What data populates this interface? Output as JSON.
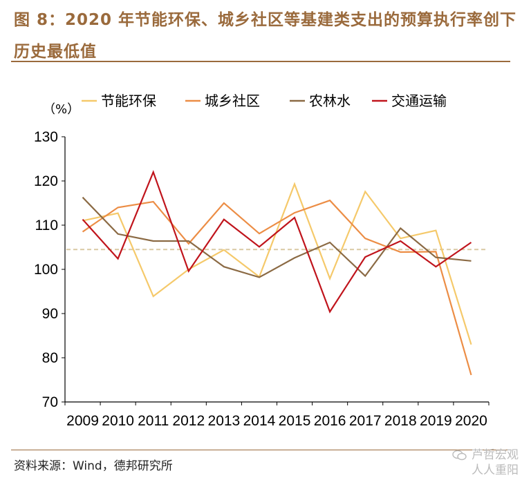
{
  "page": {
    "title": "图 8：2020 年节能环保、城乡社区等基建类支出的预算执行率创下历史最低值",
    "source": "资料来源：Wind，德邦研究所",
    "watermark_line1": "芦哲宏观",
    "watermark_line2": "人人重阳"
  },
  "chart_data": {
    "type": "line",
    "unit_label": "（%）",
    "categories": [
      "2009",
      "2010",
      "2011",
      "2012",
      "2013",
      "2014",
      "2015",
      "2016",
      "2017",
      "2018",
      "2019",
      "2020"
    ],
    "ylim": [
      70,
      130
    ],
    "yticks": [
      70,
      80,
      90,
      100,
      110,
      120,
      130
    ],
    "grid": false,
    "legend_position": "top",
    "reference_line": {
      "value": 104.5,
      "color": "#d9c9a3"
    },
    "series": [
      {
        "name": "节能环保",
        "color": "#f5c96a",
        "values": [
          111.0,
          112.7,
          93.9,
          100.0,
          104.4,
          98.3,
          119.3,
          97.9,
          117.6,
          107.0,
          108.8,
          83.0
        ]
      },
      {
        "name": "城乡社区",
        "color": "#ec8d45",
        "values": [
          108.5,
          114.0,
          115.3,
          105.8,
          115.0,
          108.1,
          112.8,
          115.6,
          107.0,
          103.9,
          104.0,
          76.1
        ]
      },
      {
        "name": "农林水",
        "color": "#8b6a44",
        "values": [
          116.3,
          108.0,
          106.4,
          106.4,
          100.6,
          98.2,
          102.6,
          106.1,
          98.5,
          109.3,
          102.7,
          101.9
        ]
      },
      {
        "name": "交通运输",
        "color": "#c0141c",
        "values": [
          111.3,
          102.4,
          122.0,
          99.6,
          111.3,
          105.1,
          111.7,
          90.4,
          102.8,
          106.4,
          100.6,
          106.1
        ]
      }
    ]
  }
}
